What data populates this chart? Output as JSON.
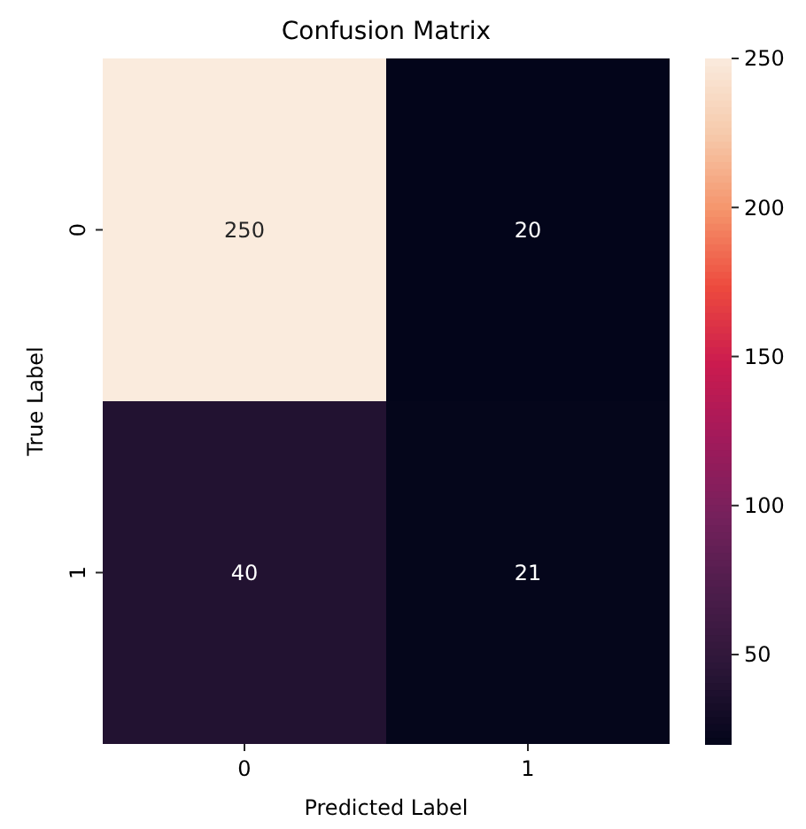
{
  "chart_data": {
    "type": "heatmap",
    "title": "Confusion Matrix",
    "xlabel": "Predicted Label",
    "ylabel": "True Label",
    "categories": [
      "0",
      "1"
    ],
    "y_categories": [
      "0",
      "1"
    ],
    "cells": [
      [
        250,
        20
      ],
      [
        40,
        21
      ]
    ],
    "data_labels": true,
    "clim": [
      20,
      250
    ],
    "cticks": [
      50,
      100,
      150,
      200,
      250
    ]
  }
}
